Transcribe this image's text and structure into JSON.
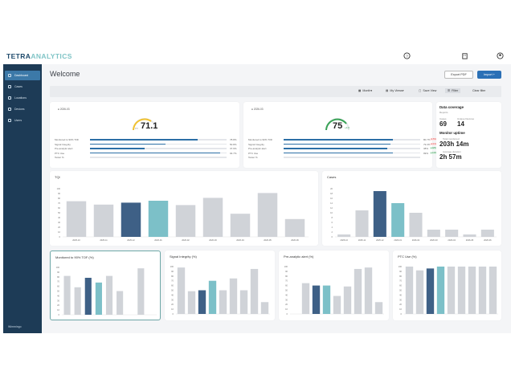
{
  "brand": {
    "part1": "TETRA",
    "part2": "ANALYTICS"
  },
  "sidebar": {
    "items": [
      {
        "label": "Dashboard"
      },
      {
        "label": "Cases"
      },
      {
        "label": "Locations"
      },
      {
        "label": "Devices"
      },
      {
        "label": "Users"
      }
    ],
    "bottom": "Wimmingo"
  },
  "header": {
    "title": "Welcome",
    "export_label": "Export PDF",
    "import_label": "Import"
  },
  "filters": {
    "month": "Month",
    "views": "My Views",
    "save": "Save View",
    "filter": "Filter",
    "clear": "Clear filter"
  },
  "gauge1": {
    "date": "2026-03",
    "value": "71.1",
    "sub": "PX",
    "metrics": [
      {
        "label": "Monitored to 90% TOF",
        "pct": "78.8%",
        "fill": 0.79
      },
      {
        "label": "Signal Integrity",
        "pct": "50.8%",
        "fill": 0.55
      },
      {
        "label": "Pre-analytic alert",
        "pct": "37.9%",
        "fill": 0.4
      },
      {
        "label": "PTC Use",
        "pct": "94.7%",
        "fill": 0.95
      },
      {
        "label": "Tester %",
        "pct": "",
        "fill": 0
      }
    ]
  },
  "gauge2": {
    "date": "2026-03",
    "value": "75",
    "sub": "+4.0",
    "metrics": [
      {
        "label": "Monitored to 90% TOF",
        "pct": "80.7%",
        "fill": 0.8,
        "delta": "-4.5%"
      },
      {
        "label": "Signal Integrity",
        "pct": "79.3%",
        "fill": 0.78,
        "delta": "-2.1%"
      },
      {
        "label": "Pre-analytic alert",
        "pct": "38%",
        "fill": 0.76,
        "delta": "+12%"
      },
      {
        "label": "PTC Use",
        "pct": "99%",
        "fill": 0.8,
        "delta": "+1.0%"
      },
      {
        "label": "Tester %",
        "pct": "",
        "fill": 0,
        "delta": ""
      }
    ]
  },
  "data_coverage": {
    "title": "Data coverage",
    "subtitle": "Reports",
    "cases_label": "Cases",
    "cases": "69",
    "devices_label": "Unique Devices",
    "devices": "14",
    "uptime_title": "Monitor uptime",
    "total_label": "Total monitored",
    "total": "203h 14m",
    "avg_label": "Average duration",
    "avg": "2h 57m"
  },
  "chart_data": [
    {
      "type": "bar",
      "title": "TQI",
      "categories": [
        "2025-10",
        "2025-11",
        "2025-12",
        "2026-01",
        "2026-02",
        "2026-03",
        "2026-04",
        "2026-05",
        "2026-06"
      ],
      "values": [
        74,
        67,
        71,
        75,
        66,
        81,
        48,
        91,
        37
      ],
      "ylim": [
        0,
        100
      ],
      "yticks": [
        "0",
        "10",
        "20",
        "30",
        "40",
        "50",
        "60",
        "70",
        "80",
        "90",
        "100"
      ],
      "colors": [
        "#d0d3d8",
        "#d0d3d8",
        "#3e6086",
        "#7cc0c8",
        "#d0d3d8",
        "#d0d3d8",
        "#d0d3d8",
        "#d0d3d8",
        "#d0d3d8"
      ]
    },
    {
      "type": "bar",
      "title": "Cases",
      "categories": [
        "2025-10",
        "2025-11",
        "2025-12",
        "2026-01",
        "2026-02",
        "2026-03",
        "2026-04",
        "2026-05",
        "2026-06"
      ],
      "values": [
        1,
        11,
        19,
        14,
        10,
        3,
        3,
        1,
        3
      ],
      "ylim": [
        0,
        20
      ],
      "yticks": [
        "0",
        "2",
        "4",
        "6",
        "8",
        "10",
        "12",
        "14",
        "16",
        "18",
        "20"
      ],
      "colors": [
        "#d0d3d8",
        "#d0d3d8",
        "#3e6086",
        "#7cc0c8",
        "#d0d3d8",
        "#d0d3d8",
        "#d0d3d8",
        "#d0d3d8",
        "#d0d3d8"
      ]
    },
    {
      "type": "bar",
      "title": "Monitored to 90% TOF (%)",
      "categories": [
        "",
        "",
        "",
        "",
        "",
        "",
        "",
        "",
        ""
      ],
      "values": [
        82,
        58,
        78,
        68,
        82,
        50,
        0,
        98,
        0
      ],
      "ylim": [
        0,
        100
      ],
      "yticks": [
        "0",
        "10",
        "20",
        "30",
        "40",
        "50",
        "60",
        "70",
        "80",
        "90",
        "100"
      ],
      "colors": [
        "#d0d3d8",
        "#d0d3d8",
        "#3e6086",
        "#7cc0c8",
        "#d0d3d8",
        "#d0d3d8",
        "#d0d3d8",
        "#d0d3d8",
        "#d0d3d8"
      ]
    },
    {
      "type": "bar",
      "title": "Signal Integrity (%)",
      "categories": [
        "",
        "",
        "",
        "",
        "",
        "",
        "",
        "",
        ""
      ],
      "values": [
        98,
        48,
        50,
        70,
        50,
        75,
        50,
        95,
        25
      ],
      "ylim": [
        0,
        100
      ],
      "yticks": [
        "0",
        "10",
        "20",
        "30",
        "40",
        "50",
        "60",
        "70",
        "80",
        "90",
        "100"
      ],
      "colors": [
        "#d0d3d8",
        "#d0d3d8",
        "#3e6086",
        "#7cc0c8",
        "#d0d3d8",
        "#d0d3d8",
        "#d0d3d8",
        "#d0d3d8",
        "#d0d3d8"
      ]
    },
    {
      "type": "bar",
      "title": "Pre-analytic alert (%)",
      "categories": [
        "",
        "",
        "",
        "",
        "",
        "",
        "",
        "",
        ""
      ],
      "values": [
        0,
        65,
        60,
        60,
        38,
        58,
        95,
        98,
        25
      ],
      "ylim": [
        0,
        100
      ],
      "yticks": [
        "0",
        "10",
        "20",
        "30",
        "40",
        "50",
        "60",
        "70",
        "80",
        "90",
        "100"
      ],
      "colors": [
        "#d0d3d8",
        "#d0d3d8",
        "#3e6086",
        "#7cc0c8",
        "#d0d3d8",
        "#d0d3d8",
        "#d0d3d8",
        "#d0d3d8",
        "#d0d3d8"
      ]
    },
    {
      "type": "bar",
      "title": "PTC Use (%)",
      "categories": [
        "",
        "",
        "",
        "",
        "",
        "",
        "",
        "",
        ""
      ],
      "values": [
        100,
        92,
        96,
        100,
        100,
        100,
        100,
        100,
        100
      ],
      "ylim": [
        0,
        100
      ],
      "yticks": [
        "0",
        "10",
        "20",
        "30",
        "40",
        "50",
        "60",
        "70",
        "80",
        "90",
        "100"
      ],
      "colors": [
        "#d0d3d8",
        "#d0d3d8",
        "#3e6086",
        "#7cc0c8",
        "#d0d3d8",
        "#d0d3d8",
        "#d0d3d8",
        "#d0d3d8",
        "#d0d3d8"
      ]
    }
  ]
}
